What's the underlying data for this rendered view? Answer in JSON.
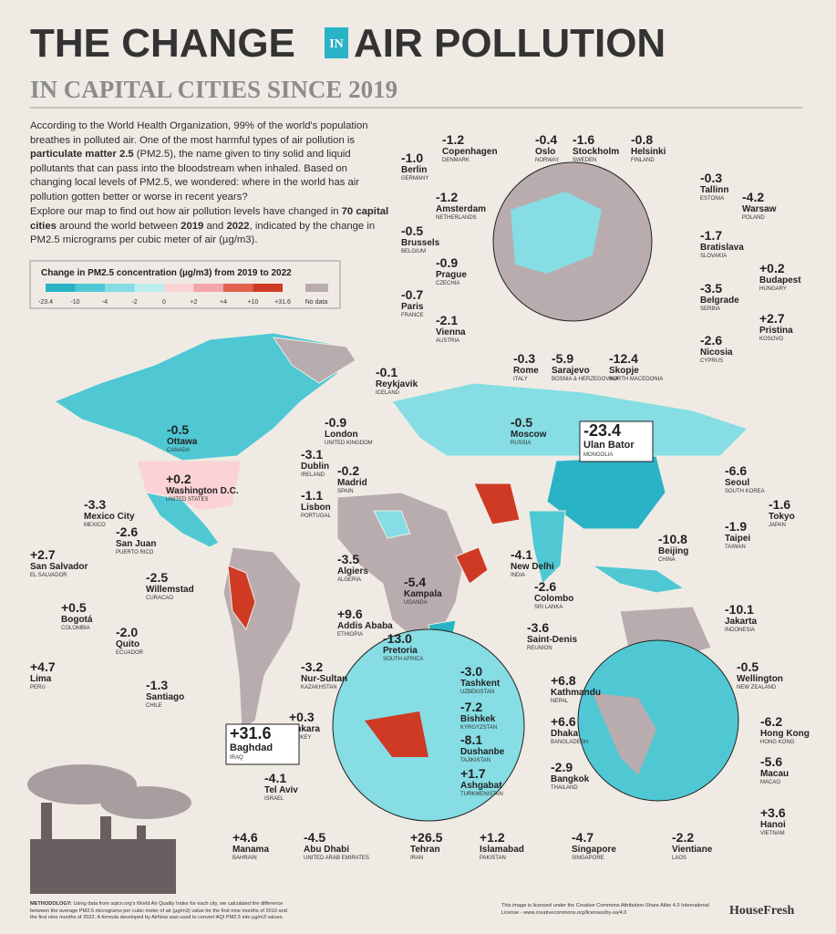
{
  "header": {
    "title_left": "THE CHANGE",
    "title_mid": "IN",
    "title_right": "AIR POLLUTION",
    "subtitle": "IN CAPITAL CITIES SINCE 2019"
  },
  "intro": [
    [
      {
        "text": "According to the World Health Organization, 99% of the world's population breathes in polluted air. One of the most harmful types of air pollution is ",
        "bold": false
      },
      {
        "text": "particulate matter 2.5",
        "bold": true
      },
      {
        "text": " (PM2.5), the name given to tiny solid and liquid pollutants that can pass into the bloodstream when inhaled. Based on changing local levels of PM2.5, we wondered: where in the world has air pollution gotten better or worse in recent years?",
        "bold": false
      }
    ],
    [
      {
        "text": "Explore our map to find out how air pollution levels have changed in ",
        "bold": false
      },
      {
        "text": "70 capital cities",
        "bold": true
      },
      {
        "text": " around the world between ",
        "bold": false
      },
      {
        "text": "2019",
        "bold": true
      },
      {
        "text": " and ",
        "bold": false
      },
      {
        "text": "2022",
        "bold": true
      },
      {
        "text": ", indicated by the change in PM2.5 micrograms per cubic meter of air (µg/m3).",
        "bold": false
      }
    ]
  ],
  "legend": {
    "title": "Change in PM2.5 concentration (µg/m3) from 2019 to 2022",
    "ticks": [
      "-23.4",
      "-10",
      "-4",
      "-2",
      "0",
      "+2",
      "+4",
      "+10",
      "+31.6"
    ],
    "colors": [
      "#2ab3c6",
      "#4fc8d4",
      "#86dde3",
      "#bdecef",
      "#fbd3d6",
      "#f3a6ad",
      "#e2604f",
      "#cf3a24"
    ],
    "no_data": "No data",
    "no_data_color": "#b9acae"
  },
  "cities": [
    {
      "change": "-1.2",
      "name": "Copenhagen",
      "country": "DENMARK"
    },
    {
      "change": "-0.4",
      "name": "Oslo",
      "country": "NORWAY"
    },
    {
      "change": "-1.6",
      "name": "Stockholm",
      "country": "SWEDEN"
    },
    {
      "change": "-0.8",
      "name": "Helsinki",
      "country": "FINLAND"
    },
    {
      "change": "-1.0",
      "name": "Berlin",
      "country": "GERMANY"
    },
    {
      "change": "-0.3",
      "name": "Tallinn",
      "country": "ESTONIA"
    },
    {
      "change": "-4.2",
      "name": "Warsaw",
      "country": "POLAND"
    },
    {
      "change": "-1.2",
      "name": "Amsterdam",
      "country": "NETHERLANDS"
    },
    {
      "change": "-0.5",
      "name": "Brussels",
      "country": "BELGIUM"
    },
    {
      "change": "-1.7",
      "name": "Bratislava",
      "country": "SLOVAKIA"
    },
    {
      "change": "-0.9",
      "name": "Prague",
      "country": "CZECHIA"
    },
    {
      "change": "+0.2",
      "name": "Budapest",
      "country": "HUNGARY"
    },
    {
      "change": "-0.7",
      "name": "Paris",
      "country": "FRANCE"
    },
    {
      "change": "-3.5",
      "name": "Belgrade",
      "country": "SERBIA"
    },
    {
      "change": "-2.1",
      "name": "Vienna",
      "country": "AUSTRIA"
    },
    {
      "change": "+2.7",
      "name": "Pristina",
      "country": "KOSOVO"
    },
    {
      "change": "-2.6",
      "name": "Nicosia",
      "country": "CYPRUS"
    },
    {
      "change": "-0.3",
      "name": "Rome",
      "country": "ITALY"
    },
    {
      "change": "-5.9",
      "name": "Sarajevo",
      "country": "BOSNIA & HERZEGOVINA"
    },
    {
      "change": "-12.4",
      "name": "Skopje",
      "country": "NORTH MACEDONIA"
    },
    {
      "change": "-0.1",
      "name": "Reykjavik",
      "country": "ICELAND"
    },
    {
      "change": "-0.9",
      "name": "London",
      "country": "UNITED KINGDOM"
    },
    {
      "change": "-0.5",
      "name": "Moscow",
      "country": "RUSSIA"
    },
    {
      "change": "-23.4",
      "name": "Ulan Bator",
      "country": "MONGOLIA",
      "highlight": true
    },
    {
      "change": "-0.5",
      "name": "Ottawa",
      "country": "CANADA"
    },
    {
      "change": "-3.1",
      "name": "Dublin",
      "country": "IRELAND"
    },
    {
      "change": "-0.2",
      "name": "Madrid",
      "country": "SPAIN"
    },
    {
      "change": "-6.6",
      "name": "Seoul",
      "country": "SOUTH KOREA"
    },
    {
      "change": "+0.2",
      "name": "Washington D.C.",
      "country": "UNITED STATES"
    },
    {
      "change": "-1.1",
      "name": "Lisbon",
      "country": "PORTUGAL"
    },
    {
      "change": "-1.6",
      "name": "Tokyo",
      "country": "JAPAN"
    },
    {
      "change": "-3.3",
      "name": "Mexico City",
      "country": "MEXICO"
    },
    {
      "change": "-2.6",
      "name": "San Juan",
      "country": "PUERTO RICO"
    },
    {
      "change": "-1.9",
      "name": "Taipei",
      "country": "TAIWAN"
    },
    {
      "change": "-10.8",
      "name": "Beijing",
      "country": "CHINA"
    },
    {
      "change": "+2.7",
      "name": "San Salvador",
      "country": "EL SALVADOR"
    },
    {
      "change": "-2.5",
      "name": "Willemstad",
      "country": "CURACAO"
    },
    {
      "change": "-3.5",
      "name": "Algiers",
      "country": "ALGERIA"
    },
    {
      "change": "-5.4",
      "name": "Kampala",
      "country": "UGANDA"
    },
    {
      "change": "-4.1",
      "name": "New Delhi",
      "country": "INDIA"
    },
    {
      "change": "-2.6",
      "name": "Colombo",
      "country": "SRI LANKA"
    },
    {
      "change": "+0.5",
      "name": "Bogotá",
      "country": "COLOMBIA"
    },
    {
      "change": "-10.1",
      "name": "Jakarta",
      "country": "INDONESIA"
    },
    {
      "change": "-2.0",
      "name": "Quito",
      "country": "ECUADOR"
    },
    {
      "change": "+9.6",
      "name": "Addis Ababa",
      "country": "ETHIOPIA"
    },
    {
      "change": "-3.6",
      "name": "Saint-Denis",
      "country": "REUNION"
    },
    {
      "change": "-13.0",
      "name": "Pretoria",
      "country": "SOUTH AFRICA"
    },
    {
      "change": "+4.7",
      "name": "Lima",
      "country": "PERU"
    },
    {
      "change": "-1.3",
      "name": "Santiago",
      "country": "CHILE"
    },
    {
      "change": "-0.5",
      "name": "Wellington",
      "country": "NEW ZEALAND"
    },
    {
      "change": "-3.2",
      "name": "Nur-Sultan",
      "country": "KAZAKHSTAN"
    },
    {
      "change": "-3.0",
      "name": "Tashkent",
      "country": "UZBEKISTAN"
    },
    {
      "change": "+6.8",
      "name": "Kathmandu",
      "country": "NEPAL"
    },
    {
      "change": "-7.2",
      "name": "Bishkek",
      "country": "KYRGYZSTAN"
    },
    {
      "change": "+0.3",
      "name": "Ankara",
      "country": "TURKEY"
    },
    {
      "change": "+31.6",
      "name": "Baghdad",
      "country": "IRAQ",
      "highlight": true
    },
    {
      "change": "-6.2",
      "name": "Hong Kong",
      "country": "HONG KONG"
    },
    {
      "change": "+6.6",
      "name": "Dhaka",
      "country": "BANGLADESH"
    },
    {
      "change": "-8.1",
      "name": "Dushanbe",
      "country": "TAJIKISTAN"
    },
    {
      "change": "-5.6",
      "name": "Macau",
      "country": "MACAO"
    },
    {
      "change": "-4.1",
      "name": "Tel Aviv",
      "country": "ISRAEL"
    },
    {
      "change": "+1.7",
      "name": "Ashgabat",
      "country": "TURKMENISTAN"
    },
    {
      "change": "-2.9",
      "name": "Bangkok",
      "country": "THAILAND"
    },
    {
      "change": "+3.6",
      "name": "Hanoi",
      "country": "VIETNAM"
    },
    {
      "change": "+4.6",
      "name": "Manama",
      "country": "BAHRAIN"
    },
    {
      "change": "-4.5",
      "name": "Abu Dhabi",
      "country": "UNITED ARAB EMIRATES"
    },
    {
      "change": "+26.5",
      "name": "Tehran",
      "country": "IRAN"
    },
    {
      "change": "+1.2",
      "name": "Islamabad",
      "country": "PAKISTAN"
    },
    {
      "change": "-4.7",
      "name": "Singapore",
      "country": "SINGAPORE"
    },
    {
      "change": "-2.2",
      "name": "Vientiane",
      "country": "LAOS"
    }
  ],
  "footer": {
    "methodology_label": "METHODOLOGY:",
    "methodology": "Using data from aqicn.org's World Air Quality Index for each city, we calculated the difference between the average PM2.5 micrograms per cubic meter of air (µg/m3) value for the first nine months of 2019 and the first nine months of 2022. A formula developed by AirNow was used to convert AQI PM2.5 into µg/m3 values.",
    "license": "This image is licensed under the Creative Commons Attribution-Share Alike 4.0 International License - www.creativecommons.org/licenses/by-sa/4.0",
    "brand": "HouseFresh"
  }
}
